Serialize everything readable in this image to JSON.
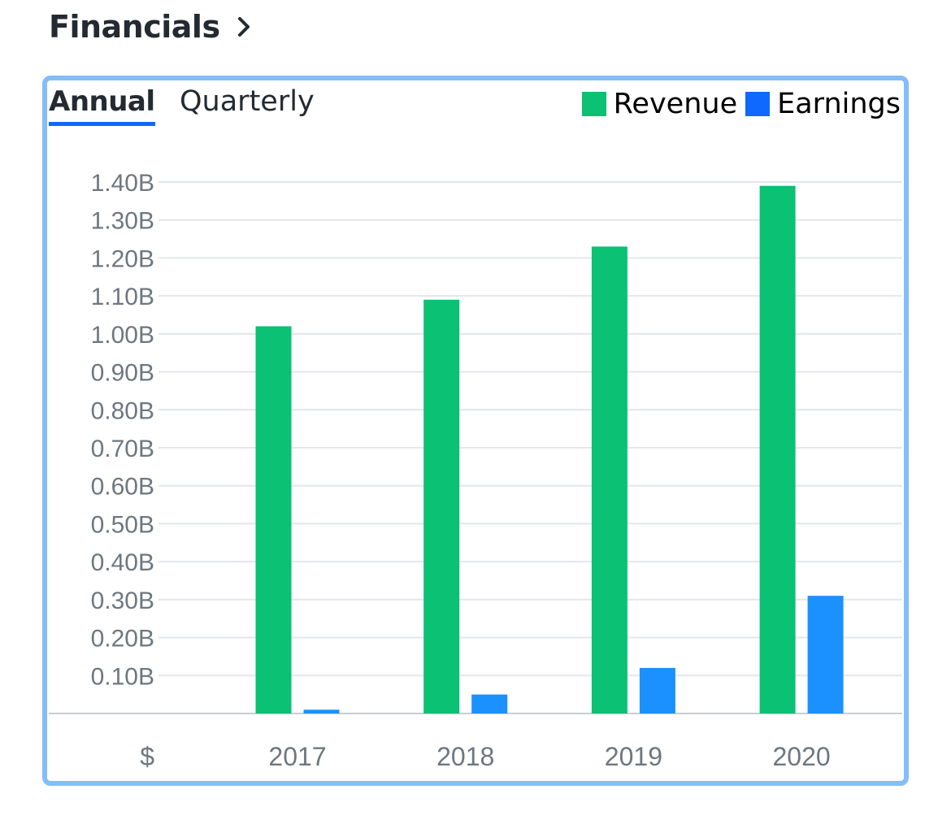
{
  "header": {
    "title": "Financials",
    "chevron_icon": "chevron-right-icon"
  },
  "tabs": [
    {
      "label": "Annual",
      "active": true
    },
    {
      "label": "Quarterly",
      "active": false
    }
  ],
  "colors": {
    "revenue": "#0ac174",
    "earnings": "#1b91ff",
    "legend_earnings": "#0f69ff",
    "accent": "#0f69ff",
    "card_border": "#84bdfa",
    "grid": "#e3e6ea",
    "axis": "#c9cdd2"
  },
  "chart_data": {
    "type": "bar",
    "currency_label": "$",
    "categories": [
      "2017",
      "2018",
      "2019",
      "2020"
    ],
    "series": [
      {
        "name": "Revenue",
        "values": [
          1.02,
          1.09,
          1.23,
          1.39
        ]
      },
      {
        "name": "Earnings",
        "values": [
          0.01,
          0.05,
          0.12,
          0.31
        ]
      }
    ],
    "y_ticks": [
      {
        "value": 0.1,
        "label": "0.10B"
      },
      {
        "value": 0.2,
        "label": "0.20B"
      },
      {
        "value": 0.3,
        "label": "0.30B"
      },
      {
        "value": 0.4,
        "label": "0.40B"
      },
      {
        "value": 0.5,
        "label": "0.50B"
      },
      {
        "value": 0.6,
        "label": "0.60B"
      },
      {
        "value": 0.7,
        "label": "0.70B"
      },
      {
        "value": 0.8,
        "label": "0.80B"
      },
      {
        "value": 0.9,
        "label": "0.90B"
      },
      {
        "value": 1.0,
        "label": "1.00B"
      },
      {
        "value": 1.1,
        "label": "1.10B"
      },
      {
        "value": 1.2,
        "label": "1.20B"
      },
      {
        "value": 1.3,
        "label": "1.30B"
      },
      {
        "value": 1.4,
        "label": "1.40B"
      }
    ],
    "ylim": [
      0,
      1.4
    ],
    "unit": "B",
    "grid": true,
    "legend_position": "top-right"
  }
}
